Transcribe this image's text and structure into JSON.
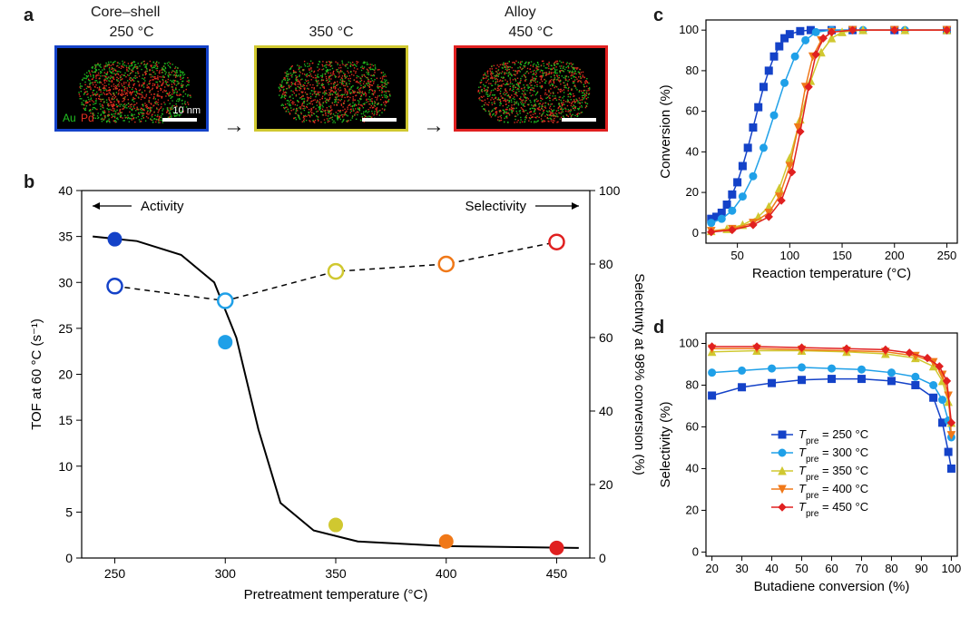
{
  "panel_labels": {
    "a": "a",
    "b": "b",
    "c": "c",
    "d": "d"
  },
  "colors": {
    "t250": "#1442c8",
    "t300": "#1fa0e8",
    "t350": "#d0c830",
    "t400": "#f07818",
    "t450": "#e02020",
    "axis": "#000000",
    "grid": "#ffffff",
    "white": "#ffffff",
    "au_green": "#20c020",
    "pd_red": "#e83020"
  },
  "panel_a": {
    "suptitle_left": "Core–shell",
    "suptitle_right": "Alloy",
    "temps": [
      "250 °C",
      "350 °C",
      "450 °C"
    ],
    "border_colors": [
      "#1442c8",
      "#d0c830",
      "#e02020"
    ],
    "scalebar_label": "10 nm",
    "au_label": "Au",
    "pd_label": "Pd"
  },
  "panel_b": {
    "type": "scatter-line-dual-axis",
    "x_label": "Pretreatment temperature (°C)",
    "y_left_label": "TOF at 60 °C (s⁻¹)",
    "y_right_label": "Selectivity at 98% conversion (%)",
    "annotation_left": "Activity",
    "annotation_right": "Selectivity",
    "x_ticks": [
      250,
      300,
      350,
      400,
      450
    ],
    "y_left_ticks": [
      0,
      5,
      10,
      15,
      20,
      25,
      30,
      35,
      40
    ],
    "y_right_ticks": [
      0,
      20,
      40,
      60,
      80,
      100
    ],
    "xlim": [
      235,
      465
    ],
    "ylim_left": [
      0,
      40
    ],
    "ylim_right": [
      0,
      100
    ],
    "activity_points": [
      {
        "x": 250,
        "y": 34.7,
        "color": "#1442c8"
      },
      {
        "x": 300,
        "y": 23.5,
        "color": "#1fa0e8"
      },
      {
        "x": 350,
        "y": 3.6,
        "color": "#d0c830"
      },
      {
        "x": 400,
        "y": 1.8,
        "color": "#f07818"
      },
      {
        "x": 450,
        "y": 1.1,
        "color": "#e02020"
      }
    ],
    "selectivity_points_right": [
      {
        "x": 250,
        "y": 74,
        "color": "#1442c8"
      },
      {
        "x": 300,
        "y": 70,
        "color": "#1fa0e8"
      },
      {
        "x": 350,
        "y": 78,
        "color": "#d0c830"
      },
      {
        "x": 400,
        "y": 80,
        "color": "#f07818"
      },
      {
        "x": 450,
        "y": 86,
        "color": "#e02020"
      }
    ],
    "activity_curve": [
      {
        "x": 240,
        "y": 35
      },
      {
        "x": 260,
        "y": 34.5
      },
      {
        "x": 280,
        "y": 33
      },
      {
        "x": 295,
        "y": 30
      },
      {
        "x": 305,
        "y": 24
      },
      {
        "x": 315,
        "y": 14
      },
      {
        "x": 325,
        "y": 6
      },
      {
        "x": 340,
        "y": 3
      },
      {
        "x": 360,
        "y": 1.8
      },
      {
        "x": 400,
        "y": 1.3
      },
      {
        "x": 460,
        "y": 1.1
      }
    ],
    "selectivity_curve_right": [
      {
        "x": 250,
        "y": 74
      },
      {
        "x": 300,
        "y": 70
      },
      {
        "x": 350,
        "y": 78
      },
      {
        "x": 400,
        "y": 80
      },
      {
        "x": 450,
        "y": 86
      }
    ],
    "marker_radius": 8,
    "open_marker_stroke": 2.5,
    "line_width_solid": 2,
    "line_width_dash": 1.5,
    "dash_pattern": "6,5",
    "font_size_axis": 15,
    "font_size_tick": 14
  },
  "panel_c": {
    "type": "line",
    "x_label": "Reaction temperature (°C)",
    "y_label": "Conversion (%)",
    "x_ticks": [
      50,
      100,
      150,
      200,
      250
    ],
    "y_ticks": [
      0,
      20,
      40,
      60,
      80,
      100
    ],
    "xlim": [
      20,
      260
    ],
    "ylim": [
      -5,
      105
    ],
    "line_width": 1.5,
    "marker_size": 4,
    "font_size_axis": 15,
    "font_size_tick": 13,
    "series": [
      {
        "key": "t250",
        "color": "#1442c8",
        "marker": "square",
        "data": [
          {
            "x": 25,
            "y": 7
          },
          {
            "x": 30,
            "y": 8
          },
          {
            "x": 35,
            "y": 10
          },
          {
            "x": 40,
            "y": 14
          },
          {
            "x": 45,
            "y": 19
          },
          {
            "x": 50,
            "y": 25
          },
          {
            "x": 55,
            "y": 33
          },
          {
            "x": 60,
            "y": 42
          },
          {
            "x": 65,
            "y": 52
          },
          {
            "x": 70,
            "y": 62
          },
          {
            "x": 75,
            "y": 72
          },
          {
            "x": 80,
            "y": 80
          },
          {
            "x": 85,
            "y": 87
          },
          {
            "x": 90,
            "y": 92
          },
          {
            "x": 95,
            "y": 96
          },
          {
            "x": 100,
            "y": 98
          },
          {
            "x": 110,
            "y": 99.5
          },
          {
            "x": 120,
            "y": 100
          },
          {
            "x": 140,
            "y": 100
          },
          {
            "x": 160,
            "y": 100
          },
          {
            "x": 200,
            "y": 100
          },
          {
            "x": 250,
            "y": 100
          }
        ]
      },
      {
        "key": "t300",
        "color": "#1fa0e8",
        "marker": "circle",
        "data": [
          {
            "x": 25,
            "y": 5
          },
          {
            "x": 35,
            "y": 7
          },
          {
            "x": 45,
            "y": 11
          },
          {
            "x": 55,
            "y": 18
          },
          {
            "x": 65,
            "y": 28
          },
          {
            "x": 75,
            "y": 42
          },
          {
            "x": 85,
            "y": 58
          },
          {
            "x": 95,
            "y": 74
          },
          {
            "x": 105,
            "y": 87
          },
          {
            "x": 115,
            "y": 95
          },
          {
            "x": 125,
            "y": 99
          },
          {
            "x": 140,
            "y": 100
          },
          {
            "x": 170,
            "y": 100
          },
          {
            "x": 210,
            "y": 100
          },
          {
            "x": 250,
            "y": 100
          }
        ]
      },
      {
        "key": "t350",
        "color": "#d0c830",
        "marker": "triangle-up",
        "data": [
          {
            "x": 25,
            "y": 1
          },
          {
            "x": 40,
            "y": 2
          },
          {
            "x": 55,
            "y": 4
          },
          {
            "x": 70,
            "y": 8
          },
          {
            "x": 80,
            "y": 13
          },
          {
            "x": 90,
            "y": 22
          },
          {
            "x": 100,
            "y": 37
          },
          {
            "x": 110,
            "y": 56
          },
          {
            "x": 120,
            "y": 75
          },
          {
            "x": 130,
            "y": 89
          },
          {
            "x": 140,
            "y": 96
          },
          {
            "x": 150,
            "y": 99
          },
          {
            "x": 170,
            "y": 100
          },
          {
            "x": 210,
            "y": 100
          },
          {
            "x": 250,
            "y": 100
          }
        ]
      },
      {
        "key": "t400",
        "color": "#f07818",
        "marker": "triangle-down",
        "data": [
          {
            "x": 25,
            "y": 1
          },
          {
            "x": 45,
            "y": 2
          },
          {
            "x": 65,
            "y": 5
          },
          {
            "x": 80,
            "y": 10
          },
          {
            "x": 90,
            "y": 18
          },
          {
            "x": 100,
            "y": 33
          },
          {
            "x": 108,
            "y": 52
          },
          {
            "x": 115,
            "y": 72
          },
          {
            "x": 122,
            "y": 87
          },
          {
            "x": 130,
            "y": 95
          },
          {
            "x": 140,
            "y": 99
          },
          {
            "x": 160,
            "y": 100
          },
          {
            "x": 200,
            "y": 100
          },
          {
            "x": 250,
            "y": 100
          }
        ]
      },
      {
        "key": "t450",
        "color": "#e02020",
        "marker": "diamond",
        "data": [
          {
            "x": 25,
            "y": 0.5
          },
          {
            "x": 45,
            "y": 1.5
          },
          {
            "x": 65,
            "y": 4
          },
          {
            "x": 80,
            "y": 8
          },
          {
            "x": 92,
            "y": 16
          },
          {
            "x": 102,
            "y": 30
          },
          {
            "x": 110,
            "y": 50
          },
          {
            "x": 118,
            "y": 72
          },
          {
            "x": 125,
            "y": 88
          },
          {
            "x": 132,
            "y": 96
          },
          {
            "x": 140,
            "y": 99
          },
          {
            "x": 160,
            "y": 100
          },
          {
            "x": 200,
            "y": 100
          },
          {
            "x": 250,
            "y": 100
          }
        ]
      }
    ]
  },
  "panel_d": {
    "type": "line",
    "x_label": "Butadiene conversion (%)",
    "y_label": "Selectivity (%)",
    "x_ticks": [
      20,
      30,
      40,
      50,
      60,
      70,
      80,
      90,
      100
    ],
    "y_ticks": [
      0,
      20,
      40,
      60,
      80,
      100
    ],
    "xlim": [
      18,
      102
    ],
    "ylim": [
      -2,
      105
    ],
    "line_width": 1.5,
    "marker_size": 4,
    "font_size_axis": 15,
    "font_size_tick": 13,
    "legend": {
      "prefix_html": "T_pre",
      "items": [
        {
          "key": "t250",
          "label": " = 250 °C",
          "color": "#1442c8",
          "marker": "square"
        },
        {
          "key": "t300",
          "label": " = 300 °C",
          "color": "#1fa0e8",
          "marker": "circle"
        },
        {
          "key": "t350",
          "label": " = 350 °C",
          "color": "#d0c830",
          "marker": "triangle-up"
        },
        {
          "key": "t400",
          "label": " = 400 °C",
          "color": "#f07818",
          "marker": "triangle-down"
        },
        {
          "key": "t450",
          "label": " = 450 °C",
          "color": "#e02020",
          "marker": "diamond"
        }
      ],
      "font_size": 13
    },
    "series": [
      {
        "key": "t250",
        "color": "#1442c8",
        "marker": "square",
        "data": [
          {
            "x": 20,
            "y": 75
          },
          {
            "x": 30,
            "y": 79
          },
          {
            "x": 40,
            "y": 81
          },
          {
            "x": 50,
            "y": 82.5
          },
          {
            "x": 60,
            "y": 83
          },
          {
            "x": 70,
            "y": 83
          },
          {
            "x": 80,
            "y": 82
          },
          {
            "x": 88,
            "y": 80
          },
          {
            "x": 94,
            "y": 74
          },
          {
            "x": 97,
            "y": 62
          },
          {
            "x": 99,
            "y": 48
          },
          {
            "x": 100,
            "y": 40
          }
        ]
      },
      {
        "key": "t300",
        "color": "#1fa0e8",
        "marker": "circle",
        "data": [
          {
            "x": 20,
            "y": 86
          },
          {
            "x": 30,
            "y": 87
          },
          {
            "x": 40,
            "y": 88
          },
          {
            "x": 50,
            "y": 88.5
          },
          {
            "x": 60,
            "y": 88
          },
          {
            "x": 70,
            "y": 87.5
          },
          {
            "x": 80,
            "y": 86
          },
          {
            "x": 88,
            "y": 84
          },
          {
            "x": 94,
            "y": 80
          },
          {
            "x": 97,
            "y": 73
          },
          {
            "x": 99,
            "y": 63
          },
          {
            "x": 100,
            "y": 55
          }
        ]
      },
      {
        "key": "t350",
        "color": "#d0c830",
        "marker": "triangle-up",
        "data": [
          {
            "x": 20,
            "y": 96
          },
          {
            "x": 35,
            "y": 96.5
          },
          {
            "x": 50,
            "y": 96.5
          },
          {
            "x": 65,
            "y": 96
          },
          {
            "x": 78,
            "y": 95
          },
          {
            "x": 88,
            "y": 93
          },
          {
            "x": 94,
            "y": 89
          },
          {
            "x": 97,
            "y": 82
          },
          {
            "x": 99,
            "y": 72
          },
          {
            "x": 100,
            "y": 62
          }
        ]
      },
      {
        "key": "t400",
        "color": "#f07818",
        "marker": "triangle-down",
        "data": [
          {
            "x": 20,
            "y": 97.5
          },
          {
            "x": 35,
            "y": 97.5
          },
          {
            "x": 50,
            "y": 97
          },
          {
            "x": 65,
            "y": 96.5
          },
          {
            "x": 78,
            "y": 96
          },
          {
            "x": 88,
            "y": 94
          },
          {
            "x": 94,
            "y": 91
          },
          {
            "x": 97,
            "y": 85
          },
          {
            "x": 99,
            "y": 75
          },
          {
            "x": 100,
            "y": 56
          }
        ]
      },
      {
        "key": "t450",
        "color": "#e02020",
        "marker": "diamond",
        "data": [
          {
            "x": 20,
            "y": 98.5
          },
          {
            "x": 35,
            "y": 98.5
          },
          {
            "x": 50,
            "y": 98
          },
          {
            "x": 65,
            "y": 97.5
          },
          {
            "x": 78,
            "y": 97
          },
          {
            "x": 86,
            "y": 95.5
          },
          {
            "x": 92,
            "y": 93
          },
          {
            "x": 96,
            "y": 89
          },
          {
            "x": 98.5,
            "y": 82
          },
          {
            "x": 100,
            "y": 62
          }
        ]
      }
    ]
  }
}
